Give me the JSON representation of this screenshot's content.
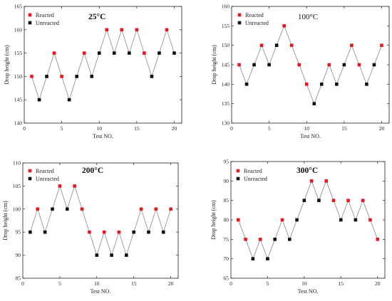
{
  "chart_data": [
    {
      "type": "line",
      "temperature_label": "25°C",
      "temperature_bold": true,
      "xlabel": "Test NO.",
      "ylabel": "Drop height (cm)",
      "xlim": [
        0,
        21
      ],
      "ylim": [
        140,
        165
      ],
      "xticks": [
        "0",
        "5",
        "10",
        "15",
        "20"
      ],
      "yticks": [
        "140",
        "145",
        "150",
        "155",
        "160",
        "165"
      ],
      "x": [
        1,
        2,
        3,
        4,
        5,
        6,
        7,
        8,
        9,
        10,
        11,
        12,
        13,
        14,
        15,
        16,
        17,
        18,
        19,
        20
      ],
      "values": [
        150,
        145,
        150,
        155,
        150,
        145,
        150,
        155,
        150,
        155,
        160,
        155,
        160,
        155,
        160,
        155,
        150,
        155,
        160,
        155
      ],
      "reacted": [
        "r",
        "u",
        "u",
        "r",
        "r",
        "u",
        "u",
        "r",
        "u",
        "u",
        "r",
        "u",
        "r",
        "u",
        "r",
        "r",
        "u",
        "u",
        "r",
        "u"
      ],
      "legend": [
        {
          "label": "Reacted",
          "color": "#e8191d"
        },
        {
          "label": "Unreacted",
          "color": "#111111"
        }
      ]
    },
    {
      "type": "line",
      "temperature_label": "100°C",
      "temperature_bold": false,
      "xlabel": "Test NO.",
      "ylabel": "Drop height (cm)",
      "xlim": [
        0,
        21
      ],
      "ylim": [
        130,
        160
      ],
      "xticks": [
        "0",
        "5",
        "10",
        "15",
        "20"
      ],
      "yticks": [
        "130",
        "135",
        "140",
        "145",
        "150",
        "155",
        "160"
      ],
      "x": [
        1,
        2,
        3,
        4,
        5,
        6,
        7,
        8,
        9,
        10,
        11,
        12,
        13,
        14,
        15,
        16,
        17,
        18,
        19,
        20
      ],
      "values": [
        145,
        140,
        145,
        150,
        145,
        150,
        155,
        150,
        145,
        140,
        135,
        140,
        145,
        140,
        145,
        150,
        145,
        140,
        145,
        150
      ],
      "reacted": [
        "r",
        "u",
        "u",
        "r",
        "u",
        "u",
        "r",
        "r",
        "r",
        "r",
        "u",
        "u",
        "r",
        "u",
        "u",
        "r",
        "r",
        "u",
        "u",
        "r"
      ],
      "legend": [
        {
          "label": "Reacted",
          "color": "#e8191d"
        },
        {
          "label": "Unreacted",
          "color": "#111111"
        }
      ]
    },
    {
      "type": "line",
      "temperature_label": "200°C",
      "temperature_bold": true,
      "xlabel": "Test NO.",
      "ylabel": "Drop height (cm)",
      "xlim": [
        0,
        21
      ],
      "ylim": [
        85,
        110
      ],
      "xticks": [
        "0",
        "5",
        "10",
        "15",
        "20"
      ],
      "yticks": [
        "85",
        "90",
        "95",
        "100",
        "105",
        "110"
      ],
      "x": [
        1,
        2,
        3,
        4,
        5,
        6,
        7,
        8,
        9,
        10,
        11,
        12,
        13,
        14,
        15,
        16,
        17,
        18,
        19,
        20
      ],
      "values": [
        95,
        100,
        95,
        100,
        105,
        100,
        105,
        100,
        95,
        90,
        95,
        90,
        95,
        90,
        95,
        100,
        95,
        100,
        95,
        100
      ],
      "reacted": [
        "u",
        "r",
        "u",
        "u",
        "r",
        "u",
        "r",
        "r",
        "r",
        "u",
        "r",
        "u",
        "r",
        "u",
        "u",
        "r",
        "u",
        "r",
        "u",
        "r"
      ],
      "legend": [
        {
          "label": "Reacted",
          "color": "#e8191d"
        },
        {
          "label": "Unreacted",
          "color": "#111111"
        }
      ]
    },
    {
      "type": "line",
      "temperature_label": "300°C",
      "temperature_bold": true,
      "xlabel": "Test NO.",
      "ylabel": "Drop height (cm)",
      "xlim": [
        0,
        21
      ],
      "ylim": [
        65,
        95
      ],
      "xticks": [
        "0",
        "5",
        "10",
        "15",
        "20"
      ],
      "yticks": [
        "65",
        "70",
        "75",
        "80",
        "85",
        "90",
        "95"
      ],
      "x": [
        1,
        2,
        3,
        4,
        5,
        6,
        7,
        8,
        9,
        10,
        11,
        12,
        13,
        14,
        15,
        16,
        17,
        18,
        19,
        20
      ],
      "values": [
        80,
        75,
        70,
        75,
        70,
        75,
        80,
        75,
        80,
        85,
        90,
        85,
        90,
        85,
        80,
        85,
        80,
        85,
        80,
        75
      ],
      "reacted": [
        "r",
        "r",
        "u",
        "r",
        "u",
        "u",
        "r",
        "u",
        "u",
        "u",
        "r",
        "u",
        "r",
        "r",
        "u",
        "r",
        "u",
        "r",
        "r",
        "r"
      ],
      "legend": [
        {
          "label": "Reacted",
          "color": "#e8191d"
        },
        {
          "label": "Unreacted",
          "color": "#111111"
        }
      ]
    }
  ]
}
